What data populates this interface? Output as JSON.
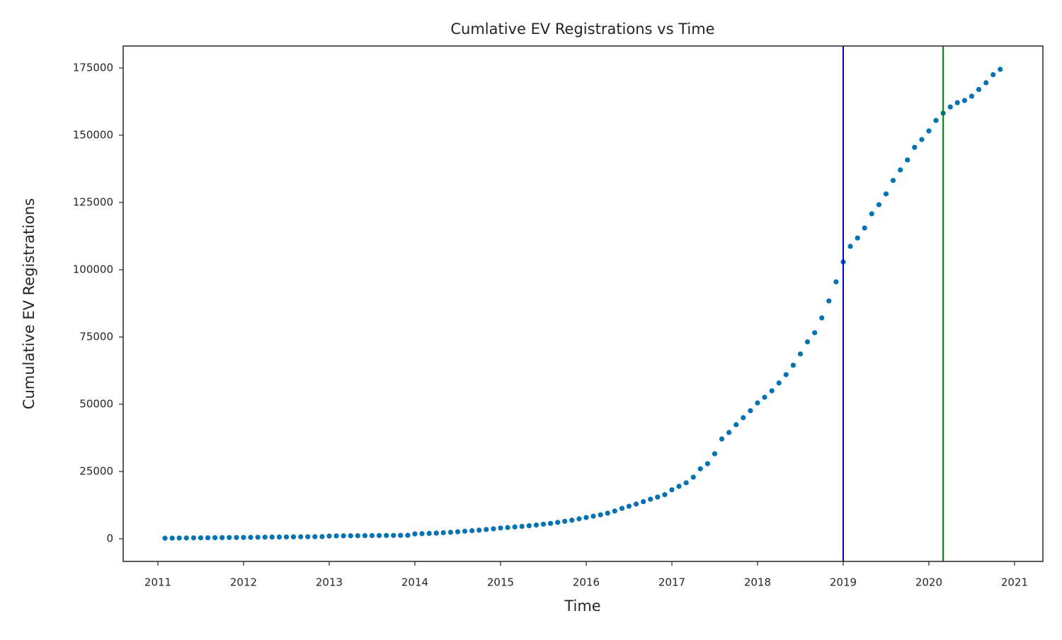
{
  "chart_data": {
    "type": "scatter",
    "title": "Cumlative EV Registrations vs Time",
    "xlabel": "Time",
    "ylabel": "Cumulative EV Registrations",
    "color": "#0173b2",
    "x": [
      2011.083,
      2011.167,
      2011.25,
      2011.333,
      2011.417,
      2011.5,
      2011.583,
      2011.667,
      2011.75,
      2011.833,
      2011.917,
      2012,
      2012.083,
      2012.167,
      2012.25,
      2012.333,
      2012.417,
      2012.5,
      2012.583,
      2012.667,
      2012.75,
      2012.833,
      2012.917,
      2013,
      2013.083,
      2013.167,
      2013.25,
      2013.333,
      2013.417,
      2013.5,
      2013.583,
      2013.667,
      2013.75,
      2013.833,
      2013.917,
      2014,
      2014.083,
      2014.167,
      2014.25,
      2014.333,
      2014.417,
      2014.5,
      2014.583,
      2014.667,
      2014.75,
      2014.833,
      2014.917,
      2015,
      2015.083,
      2015.167,
      2015.25,
      2015.333,
      2015.417,
      2015.5,
      2015.583,
      2015.667,
      2015.75,
      2015.833,
      2015.917,
      2016,
      2016.083,
      2016.167,
      2016.25,
      2016.333,
      2016.417,
      2016.5,
      2016.583,
      2016.667,
      2016.75,
      2016.833,
      2016.917,
      2017,
      2017.083,
      2017.167,
      2017.25,
      2017.333,
      2017.417,
      2017.5,
      2017.583,
      2017.667,
      2017.75,
      2017.833,
      2017.917,
      2018,
      2018.083,
      2018.167,
      2018.25,
      2018.333,
      2018.417,
      2018.5,
      2018.583,
      2018.667,
      2018.75,
      2018.833,
      2018.917,
      2019,
      2019.083,
      2019.167,
      2019.25,
      2019.333,
      2019.417,
      2019.5,
      2019.583,
      2019.667,
      2019.75,
      2019.833,
      2019.917,
      2020,
      2020.083,
      2020.167,
      2020.25,
      2020.333,
      2020.417,
      2020.5,
      2020.583,
      2020.667,
      2020.75,
      2020.833
    ],
    "values": [
      200,
      250,
      280,
      300,
      330,
      350,
      380,
      400,
      420,
      450,
      480,
      500,
      530,
      560,
      590,
      620,
      650,
      680,
      700,
      720,
      740,
      760,
      780,
      1000,
      1050,
      1080,
      1100,
      1120,
      1150,
      1180,
      1200,
      1220,
      1240,
      1260,
      1280,
      1800,
      1900,
      2000,
      2100,
      2250,
      2400,
      2600,
      2800,
      3000,
      3200,
      3450,
      3700,
      4000,
      4200,
      4400,
      4600,
      4850,
      5100,
      5400,
      5700,
      6100,
      6500,
      6900,
      7400,
      7900,
      8400,
      8900,
      9500,
      10300,
      11300,
      12100,
      12900,
      13800,
      14700,
      15500,
      16400,
      18200,
      19500,
      20800,
      22900,
      26000,
      27900,
      31600,
      37100,
      39500,
      42400,
      45000,
      47600,
      50500,
      52600,
      55000,
      57900,
      61000,
      64500,
      68700,
      73200,
      76600,
      82100,
      88400,
      95500,
      102900,
      108700,
      111800,
      115500,
      120800,
      124200,
      128200,
      133200,
      137100,
      140800,
      145500,
      148400,
      151600,
      155500,
      158200,
      160500,
      162100,
      162900,
      164500,
      167000,
      169500,
      172500,
      174500
    ],
    "vlines": [
      {
        "x": 2019,
        "color": "#0000cc"
      },
      {
        "x": 2020.167,
        "color": "#008000"
      }
    ],
    "xlim": [
      2010.595,
      2021.331
    ],
    "xticks": [
      2011,
      2012,
      2013,
      2014,
      2015,
      2016,
      2017,
      2018,
      2019,
      2020,
      2021
    ],
    "ylim": [
      -8421,
      183158
    ],
    "yticks": [
      0,
      25000,
      50000,
      75000,
      100000,
      125000,
      150000,
      175000
    ]
  }
}
